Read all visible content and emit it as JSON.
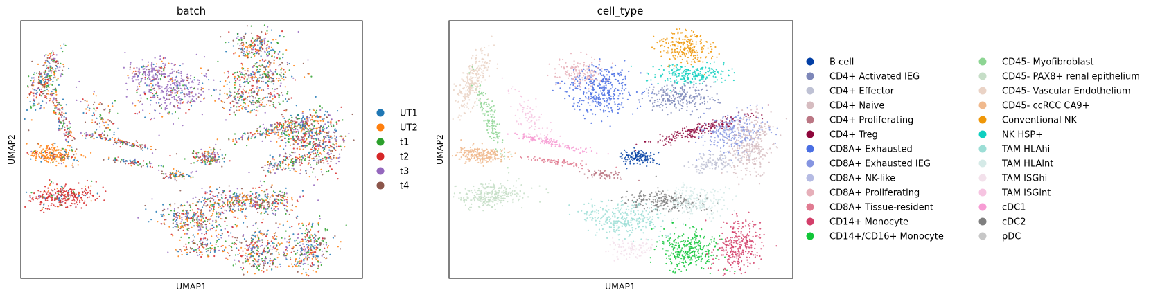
{
  "chart_data": [
    {
      "type": "scatter",
      "title": "batch",
      "xlabel": "UMAP1",
      "ylabel": "UMAP2",
      "grid": false,
      "ticks": false,
      "legend_position": "right-outside",
      "legend": [
        {
          "name": "UT1",
          "color": "#1f77b4"
        },
        {
          "name": "UT2",
          "color": "#ff7f0e"
        },
        {
          "name": "t1",
          "color": "#2ca02c"
        },
        {
          "name": "t2",
          "color": "#d62728"
        },
        {
          "name": "t3",
          "color": "#9467bd"
        },
        {
          "name": "t4",
          "color": "#8c564b"
        }
      ]
    },
    {
      "type": "scatter",
      "title": "cell_type",
      "xlabel": "UMAP1",
      "ylabel": "UMAP2",
      "grid": false,
      "ticks": false,
      "legend_position": "right-outside",
      "legend": [
        {
          "name": "B cell",
          "color": "#023fa5"
        },
        {
          "name": "CD4+ Activated IEG",
          "color": "#7d87b9"
        },
        {
          "name": "CD4+ Effector",
          "color": "#bec1d4"
        },
        {
          "name": "CD4+ Naive",
          "color": "#d6bcc0"
        },
        {
          "name": "CD4+ Proliferating",
          "color": "#bb7784"
        },
        {
          "name": "CD4+ Treg",
          "color": "#8e063b"
        },
        {
          "name": "CD8A+ Exhausted",
          "color": "#4a6fe3"
        },
        {
          "name": "CD8A+ Exhausted IEG",
          "color": "#8595e1"
        },
        {
          "name": "CD8A+ NK-like",
          "color": "#b5bbe3"
        },
        {
          "name": "CD8A+ Proliferating",
          "color": "#e6afb9"
        },
        {
          "name": "CD8A+ Tissue-resident",
          "color": "#e07b91"
        },
        {
          "name": "CD14+ Monocyte",
          "color": "#d33f6a"
        },
        {
          "name": "CD14+/CD16+ Monocyte",
          "color": "#11c638"
        },
        {
          "name": "CD45- Myofibroblast",
          "color": "#8dd593"
        },
        {
          "name": "CD45- PAX8+ renal epithelium",
          "color": "#c6dec7"
        },
        {
          "name": "CD45- Vascular Endothelium",
          "color": "#ead3c6"
        },
        {
          "name": "CD45- ccRCC CA9+",
          "color": "#f0b98d"
        },
        {
          "name": "Conventional NK",
          "color": "#ef9708"
        },
        {
          "name": "NK HSP+",
          "color": "#0fcfc0"
        },
        {
          "name": "TAM HLAhi",
          "color": "#9cded6"
        },
        {
          "name": "TAM HLAint",
          "color": "#d5eae7"
        },
        {
          "name": "TAM ISGhi",
          "color": "#f3e1eb"
        },
        {
          "name": "TAM ISGint",
          "color": "#f6c4e1"
        },
        {
          "name": "cDC1",
          "color": "#f79cd4"
        },
        {
          "name": "cDC2",
          "color": "#7f7f7f"
        },
        {
          "name": "pDC",
          "color": "#c7c7c7"
        }
      ]
    }
  ]
}
